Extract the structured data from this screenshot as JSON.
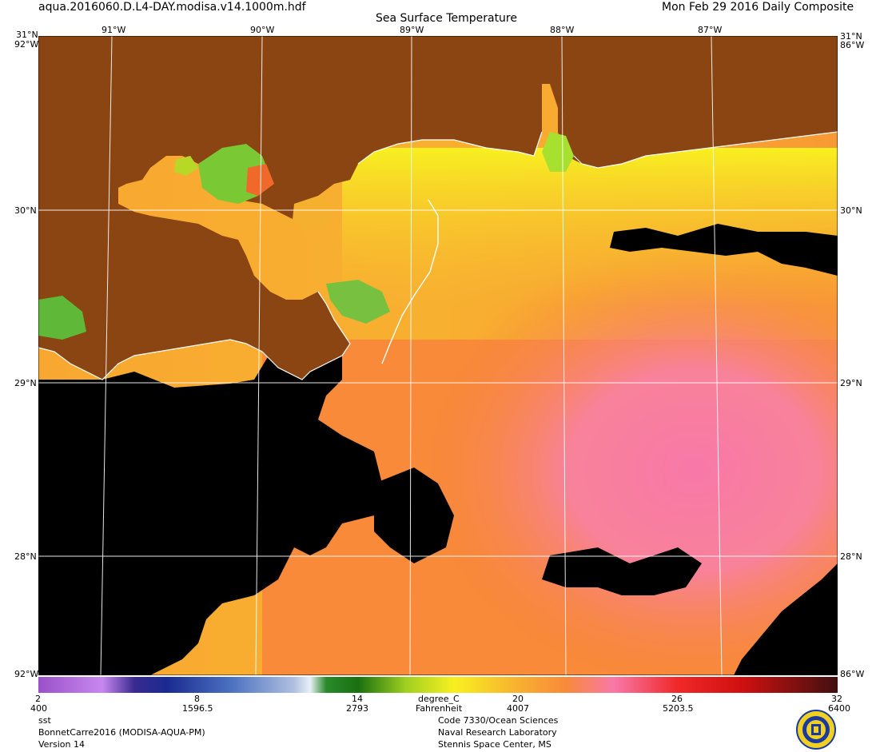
{
  "header": {
    "file_name": "aqua.2016060.D.L4-DAY.modisa.v14.1000m.hdf",
    "title": "Sea Surface Temperature",
    "date_label": "Mon Feb 29 2016 Daily Composite"
  },
  "map": {
    "lon_labels": [
      "91°W",
      "90°W",
      "89°W",
      "88°W",
      "87°W"
    ],
    "lat_labels_left": [
      "31°N",
      "30°N",
      "29°N",
      "28°N"
    ],
    "lat_labels_right": [
      "31°N",
      "30°N",
      "29°N",
      "28°N"
    ],
    "corner_label": "92°W",
    "corner_label_right": "86°W",
    "land_color": "#8b4513",
    "cloud_color": "#000000",
    "coast_color": "#ffffff"
  },
  "colorbar": {
    "celsius_ticks": [
      "2",
      "8",
      "14",
      "20",
      "26",
      "32"
    ],
    "fahrenheit_ticks": [
      "400",
      "1596.5",
      "2793",
      "4007",
      "5203.5",
      "6400"
    ],
    "unit_celsius": "degree_C",
    "unit_fahrenheit": "Fahrenheit",
    "left_corner_label": "92°W",
    "right_corner_label": "86°W"
  },
  "footer": {
    "variable": "sst",
    "dataset": "BonnetCarre2016 (MODISA-AQUA-PM)",
    "version": "Version 14",
    "org_line1": "Code 7330/Ocean Sciences",
    "org_line2": "Naval Research Laboratory",
    "org_line3": "Stennis Space Center, MS"
  },
  "logo": {
    "name": "naval-research-laboratory-seal",
    "colors": [
      "#1a3aa0",
      "#f0d020"
    ]
  }
}
